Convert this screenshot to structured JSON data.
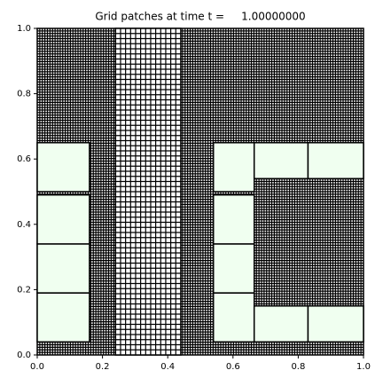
{
  "chart_data": {
    "type": "patches",
    "title": "Grid patches at time t =     1.00000000",
    "xlim": [
      0,
      1
    ],
    "ylim": [
      0,
      1
    ],
    "xticks": [
      {
        "value": 0,
        "label": "0.0"
      },
      {
        "value": 0.2,
        "label": "0.2"
      },
      {
        "value": 0.4,
        "label": "0.4"
      },
      {
        "value": 0.6,
        "label": "0.6"
      },
      {
        "value": 0.8,
        "label": "0.8"
      },
      {
        "value": 1,
        "label": "1.0"
      }
    ],
    "yticks": [
      {
        "value": 0,
        "label": "0.0"
      },
      {
        "value": 0.2,
        "label": "0.2"
      },
      {
        "value": 0.4,
        "label": "0.4"
      },
      {
        "value": 0.6,
        "label": "0.6"
      },
      {
        "value": 0.8,
        "label": "0.8"
      },
      {
        "value": 1,
        "label": "1.0"
      }
    ],
    "patches": [
      {
        "x": [
          0,
          1
        ],
        "y": [
          0,
          1
        ],
        "cells": [
          128,
          128
        ],
        "color": "#ffffff"
      },
      {
        "x": [
          0.24,
          0.44
        ],
        "y": [
          0,
          1
        ],
        "cells": [
          13,
          64
        ],
        "color": "#ffffff"
      },
      {
        "x": [
          0,
          0.16
        ],
        "y": [
          0.04,
          0.19
        ],
        "color": "#f0fff0"
      },
      {
        "x": [
          0,
          0.16
        ],
        "y": [
          0.19,
          0.34
        ],
        "color": "#f0fff0"
      },
      {
        "x": [
          0,
          0.16
        ],
        "y": [
          0.34,
          0.49
        ],
        "color": "#f0fff0"
      },
      {
        "x": [
          0,
          0.16
        ],
        "y": [
          0.5,
          0.65
        ],
        "color": "#f0fff0"
      },
      {
        "x": [
          0.54,
          0.665
        ],
        "y": [
          0.04,
          0.19
        ],
        "color": "#f0fff0"
      },
      {
        "x": [
          0.54,
          0.665
        ],
        "y": [
          0.19,
          0.34
        ],
        "color": "#f0fff0"
      },
      {
        "x": [
          0.54,
          0.665
        ],
        "y": [
          0.34,
          0.49
        ],
        "color": "#f0fff0"
      },
      {
        "x": [
          0.54,
          0.665
        ],
        "y": [
          0.5,
          0.65
        ],
        "color": "#f0fff0"
      },
      {
        "x": [
          0.665,
          0.83
        ],
        "y": [
          0.04,
          0.15
        ],
        "color": "#f0fff0"
      },
      {
        "x": [
          0.83,
          1
        ],
        "y": [
          0.04,
          0.15
        ],
        "color": "#f0fff0"
      },
      {
        "x": [
          0.665,
          0.83
        ],
        "y": [
          0.54,
          0.65
        ],
        "color": "#f0fff0"
      },
      {
        "x": [
          0.83,
          1
        ],
        "y": [
          0.54,
          0.65
        ],
        "color": "#f0fff0"
      }
    ]
  }
}
